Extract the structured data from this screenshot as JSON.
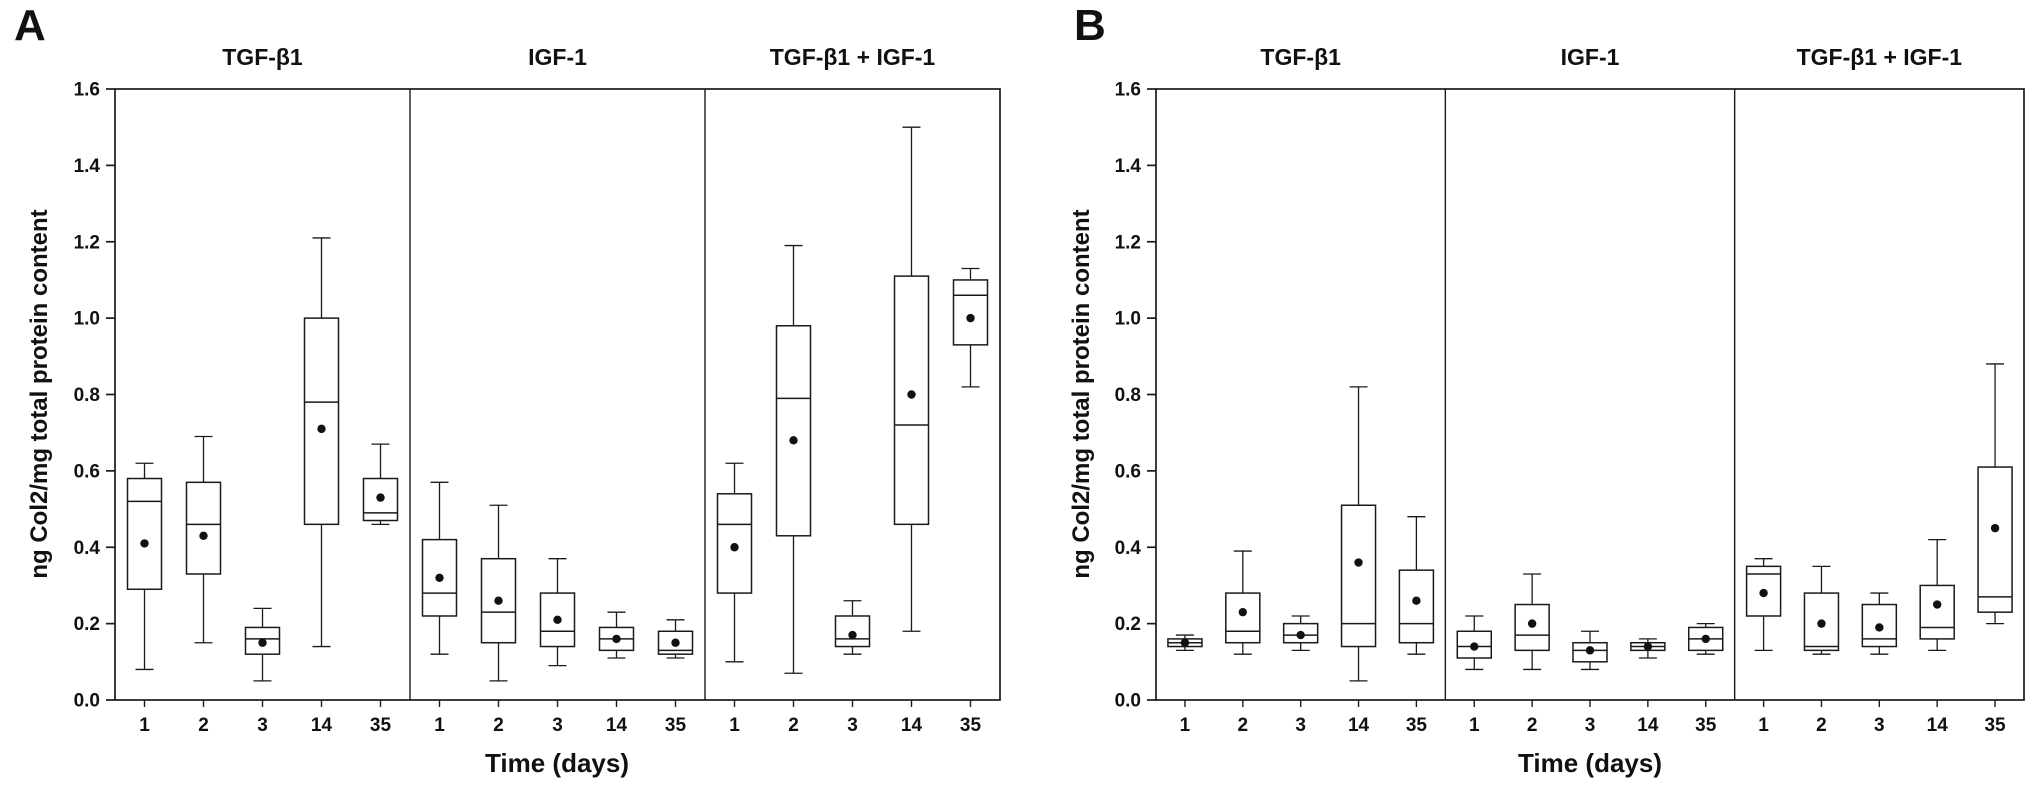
{
  "figure": {
    "background": "#ffffff",
    "axis_color": "#1a1a1a"
  },
  "chart_data": [
    {
      "type": "box",
      "panel_label": "A",
      "xlabel": "Time (days)",
      "ylabel": "ng Col2/mg total protein content",
      "ylim": [
        0.0,
        1.6
      ],
      "yticks": [
        0.0,
        0.2,
        0.4,
        0.6,
        0.8,
        1.0,
        1.2,
        1.4,
        1.6
      ],
      "grid": false,
      "legend": "none",
      "groups": [
        {
          "name": "TGF-β1",
          "categories": [
            "1",
            "2",
            "3",
            "14",
            "35"
          ],
          "boxes": [
            {
              "whisker_low": 0.08,
              "q1": 0.29,
              "median": 0.52,
              "q3": 0.58,
              "whisker_high": 0.62,
              "mean": 0.41
            },
            {
              "whisker_low": 0.15,
              "q1": 0.33,
              "median": 0.46,
              "q3": 0.57,
              "whisker_high": 0.69,
              "mean": 0.43
            },
            {
              "whisker_low": 0.05,
              "q1": 0.12,
              "median": 0.16,
              "q3": 0.19,
              "whisker_high": 0.24,
              "mean": 0.15
            },
            {
              "whisker_low": 0.14,
              "q1": 0.46,
              "median": 0.78,
              "q3": 1.0,
              "whisker_high": 1.21,
              "mean": 0.71
            },
            {
              "whisker_low": 0.46,
              "q1": 0.47,
              "median": 0.49,
              "q3": 0.58,
              "whisker_high": 0.67,
              "mean": 0.53
            }
          ]
        },
        {
          "name": "IGF-1",
          "categories": [
            "1",
            "2",
            "3",
            "14",
            "35"
          ],
          "boxes": [
            {
              "whisker_low": 0.12,
              "q1": 0.22,
              "median": 0.28,
              "q3": 0.42,
              "whisker_high": 0.57,
              "mean": 0.32
            },
            {
              "whisker_low": 0.05,
              "q1": 0.15,
              "median": 0.23,
              "q3": 0.37,
              "whisker_high": 0.51,
              "mean": 0.26
            },
            {
              "whisker_low": 0.09,
              "q1": 0.14,
              "median": 0.18,
              "q3": 0.28,
              "whisker_high": 0.37,
              "mean": 0.21
            },
            {
              "whisker_low": 0.11,
              "q1": 0.13,
              "median": 0.16,
              "q3": 0.19,
              "whisker_high": 0.23,
              "mean": 0.16
            },
            {
              "whisker_low": 0.11,
              "q1": 0.12,
              "median": 0.13,
              "q3": 0.18,
              "whisker_high": 0.21,
              "mean": 0.15
            }
          ]
        },
        {
          "name": "TGF-β1 + IGF-1",
          "categories": [
            "1",
            "2",
            "3",
            "14",
            "35"
          ],
          "boxes": [
            {
              "whisker_low": 0.1,
              "q1": 0.28,
              "median": 0.46,
              "q3": 0.54,
              "whisker_high": 0.62,
              "mean": 0.4
            },
            {
              "whisker_low": 0.07,
              "q1": 0.43,
              "median": 0.79,
              "q3": 0.98,
              "whisker_high": 1.19,
              "mean": 0.68
            },
            {
              "whisker_low": 0.12,
              "q1": 0.14,
              "median": 0.16,
              "q3": 0.22,
              "whisker_high": 0.26,
              "mean": 0.17
            },
            {
              "whisker_low": 0.18,
              "q1": 0.46,
              "median": 0.72,
              "q3": 1.11,
              "whisker_high": 1.5,
              "mean": 0.8
            },
            {
              "whisker_low": 0.82,
              "q1": 0.93,
              "median": 1.06,
              "q3": 1.1,
              "whisker_high": 1.13,
              "mean": 1.0
            }
          ]
        }
      ]
    },
    {
      "type": "box",
      "panel_label": "B",
      "xlabel": "Time (days)",
      "ylabel": "ng Col2/mg total protein content",
      "ylim": [
        0.0,
        1.6
      ],
      "yticks": [
        0.0,
        0.2,
        0.4,
        0.6,
        0.8,
        1.0,
        1.2,
        1.4,
        1.6
      ],
      "grid": false,
      "legend": "none",
      "groups": [
        {
          "name": "TGF-β1",
          "categories": [
            "1",
            "2",
            "3",
            "14",
            "35"
          ],
          "boxes": [
            {
              "whisker_low": 0.13,
              "q1": 0.14,
              "median": 0.15,
              "q3": 0.16,
              "whisker_high": 0.17,
              "mean": 0.15
            },
            {
              "whisker_low": 0.12,
              "q1": 0.15,
              "median": 0.18,
              "q3": 0.28,
              "whisker_high": 0.39,
              "mean": 0.23
            },
            {
              "whisker_low": 0.13,
              "q1": 0.15,
              "median": 0.17,
              "q3": 0.2,
              "whisker_high": 0.22,
              "mean": 0.17
            },
            {
              "whisker_low": 0.05,
              "q1": 0.14,
              "median": 0.2,
              "q3": 0.51,
              "whisker_high": 0.82,
              "mean": 0.36
            },
            {
              "whisker_low": 0.12,
              "q1": 0.15,
              "median": 0.2,
              "q3": 0.34,
              "whisker_high": 0.48,
              "mean": 0.26
            }
          ]
        },
        {
          "name": "IGF-1",
          "categories": [
            "1",
            "2",
            "3",
            "14",
            "35"
          ],
          "boxes": [
            {
              "whisker_low": 0.08,
              "q1": 0.11,
              "median": 0.14,
              "q3": 0.18,
              "whisker_high": 0.22,
              "mean": 0.14
            },
            {
              "whisker_low": 0.08,
              "q1": 0.13,
              "median": 0.17,
              "q3": 0.25,
              "whisker_high": 0.33,
              "mean": 0.2
            },
            {
              "whisker_low": 0.08,
              "q1": 0.1,
              "median": 0.13,
              "q3": 0.15,
              "whisker_high": 0.18,
              "mean": 0.13
            },
            {
              "whisker_low": 0.11,
              "q1": 0.13,
              "median": 0.14,
              "q3": 0.15,
              "whisker_high": 0.16,
              "mean": 0.14
            },
            {
              "whisker_low": 0.12,
              "q1": 0.13,
              "median": 0.16,
              "q3": 0.19,
              "whisker_high": 0.2,
              "mean": 0.16
            }
          ]
        },
        {
          "name": "TGF-β1 + IGF-1",
          "categories": [
            "1",
            "2",
            "3",
            "14",
            "35"
          ],
          "boxes": [
            {
              "whisker_low": 0.13,
              "q1": 0.22,
              "median": 0.33,
              "q3": 0.35,
              "whisker_high": 0.37,
              "mean": 0.28
            },
            {
              "whisker_low": 0.12,
              "q1": 0.13,
              "median": 0.14,
              "q3": 0.28,
              "whisker_high": 0.35,
              "mean": 0.2
            },
            {
              "whisker_low": 0.12,
              "q1": 0.14,
              "median": 0.16,
              "q3": 0.25,
              "whisker_high": 0.28,
              "mean": 0.19
            },
            {
              "whisker_low": 0.13,
              "q1": 0.16,
              "median": 0.19,
              "q3": 0.3,
              "whisker_high": 0.42,
              "mean": 0.25
            },
            {
              "whisker_low": 0.2,
              "q1": 0.23,
              "median": 0.27,
              "q3": 0.61,
              "whisker_high": 0.88,
              "mean": 0.45
            }
          ]
        }
      ]
    }
  ]
}
